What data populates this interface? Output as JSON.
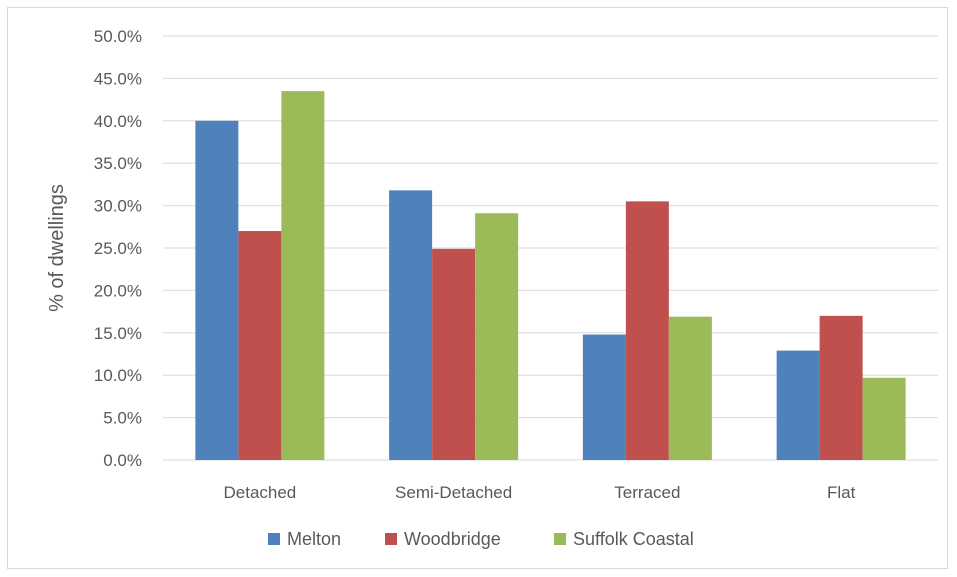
{
  "chart_data": {
    "type": "bar",
    "title": "",
    "xlabel": "",
    "ylabel": "% of dwellings",
    "categories": [
      "Detached",
      "Semi-Detached",
      "Terraced",
      "Flat"
    ],
    "series": [
      {
        "name": "Melton",
        "color": "#4f81bd",
        "values": [
          40.0,
          31.8,
          14.8,
          12.9
        ]
      },
      {
        "name": "Woodbridge",
        "color": "#c0504d",
        "values": [
          27.0,
          24.9,
          30.5,
          17.0
        ]
      },
      {
        "name": "Suffolk Coastal",
        "color": "#9bbb59",
        "values": [
          43.5,
          29.1,
          16.9,
          9.7
        ]
      }
    ],
    "ylim": [
      0,
      50
    ],
    "yticks": [
      "0.0%",
      "5.0%",
      "10.0%",
      "15.0%",
      "20.0%",
      "25.0%",
      "30.0%",
      "35.0%",
      "40.0%",
      "45.0%",
      "50.0%"
    ],
    "grid": true,
    "legend_position": "bottom"
  }
}
